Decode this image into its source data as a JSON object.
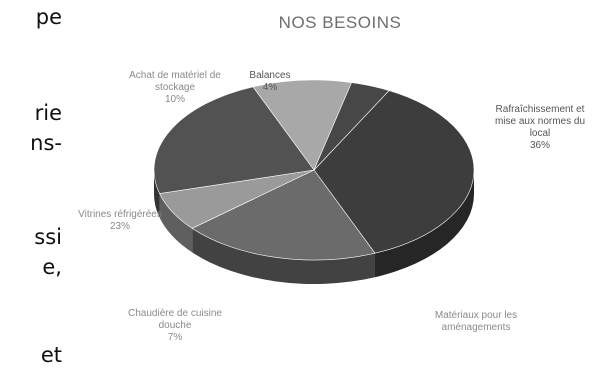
{
  "side_fragments": [
    "pe",
    "rie",
    "ns-",
    "ssi",
    "e,",
    "et"
  ],
  "chart_data": {
    "type": "pie",
    "title": "NOS BESOINS",
    "three_d": true,
    "slices": [
      {
        "label": [
          "Rafraîchissement et",
          "mise aux normes du",
          "local"
        ],
        "percent_label": "36%",
        "value": 36,
        "color": "#3d3d3d"
      },
      {
        "label": [
          "Matériaux pour les",
          "aménagements"
        ],
        "percent_label": "",
        "value": 20,
        "color": "#6b6b6b"
      },
      {
        "label": [
          "Chaudière de cuisine",
          "douche"
        ],
        "percent_label": "7%",
        "value": 7,
        "color": "#9a9a9a"
      },
      {
        "label": [
          "Vitrines réfrigérées"
        ],
        "percent_label": "23%",
        "value": 23,
        "color": "#525252"
      },
      {
        "label": [
          "Achat de matériel de",
          "stockage"
        ],
        "percent_label": "10%",
        "value": 10,
        "color": "#a8a8a8"
      },
      {
        "label": [
          "Balances"
        ],
        "percent_label": "4%",
        "value": 4,
        "color": "#474747"
      }
    ]
  }
}
